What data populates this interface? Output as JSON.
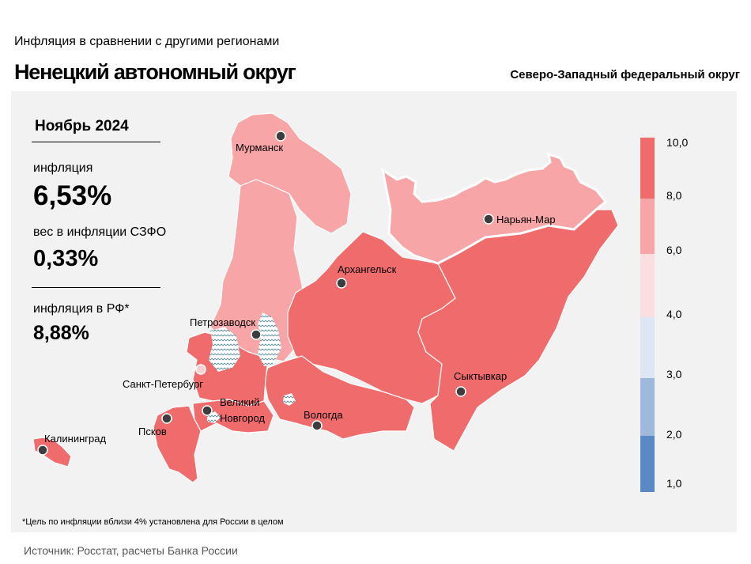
{
  "header": {
    "subtitle": "Инфляция  в сравнении  с другими  регионами",
    "title": "Ненецкий автономный округ",
    "district": "Северо-Западный федеральный округ"
  },
  "stats": {
    "period": "Ноябрь 2024",
    "inflation_label": "инфляция",
    "inflation_value": "6,53%",
    "weight_label": "вес в инфляции  СЗФО",
    "weight_value": "0,33%",
    "russia_label": "инфляция  в РФ*",
    "russia_value": "8,88%"
  },
  "legend": {
    "ticks": [
      "10,0",
      "8,0",
      "6,0",
      "4,0",
      "3,0",
      "2,0",
      "1,0"
    ],
    "colors": [
      "#f06b6c",
      "#f7a5a6",
      "#fbdfe0",
      "#dde6f3",
      "#9eb9dc",
      "#5a89c6"
    ]
  },
  "map": {
    "colors": {
      "high": "#f06b6c",
      "mid": "#f7a5a6",
      "selected": "#f7a5a6",
      "hatch": "#5e8fa0"
    },
    "cities": {
      "murmansk": "Мурманск",
      "naryan_mar": "Нарьян-Мар",
      "arkhangelsk": "Архангельск",
      "petrozavodsk": "Петрозаводск",
      "syktyvkar": "Сыктывкар",
      "saint_petersburg": "Санкт-Петербург",
      "velikiy_novgorod_1": "Великий",
      "velikiy_novgorod_2": "Новгород",
      "vologda": "Вологда",
      "pskov": "Псков",
      "kaliningrad": "Калининград"
    }
  },
  "footnote": "*Цель по инфляции вблизи 4% установлена для России в целом",
  "source": "Источник:  Росстат,  расчеты Банка  России"
}
